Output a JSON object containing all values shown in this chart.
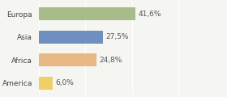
{
  "categories": [
    "Europa",
    "Asia",
    "Africa",
    "America"
  ],
  "values": [
    41.6,
    27.5,
    24.8,
    6.0
  ],
  "labels": [
    "41,6%",
    "27,5%",
    "24,8%",
    "6,0%"
  ],
  "bar_colors": [
    "#a8bc8a",
    "#6e8fbf",
    "#e8b887",
    "#f0d065"
  ],
  "background_color": "#f5f5f2",
  "xlim": [
    0,
    80
  ],
  "bar_height": 0.55,
  "label_fontsize": 6.5,
  "category_fontsize": 6.5
}
